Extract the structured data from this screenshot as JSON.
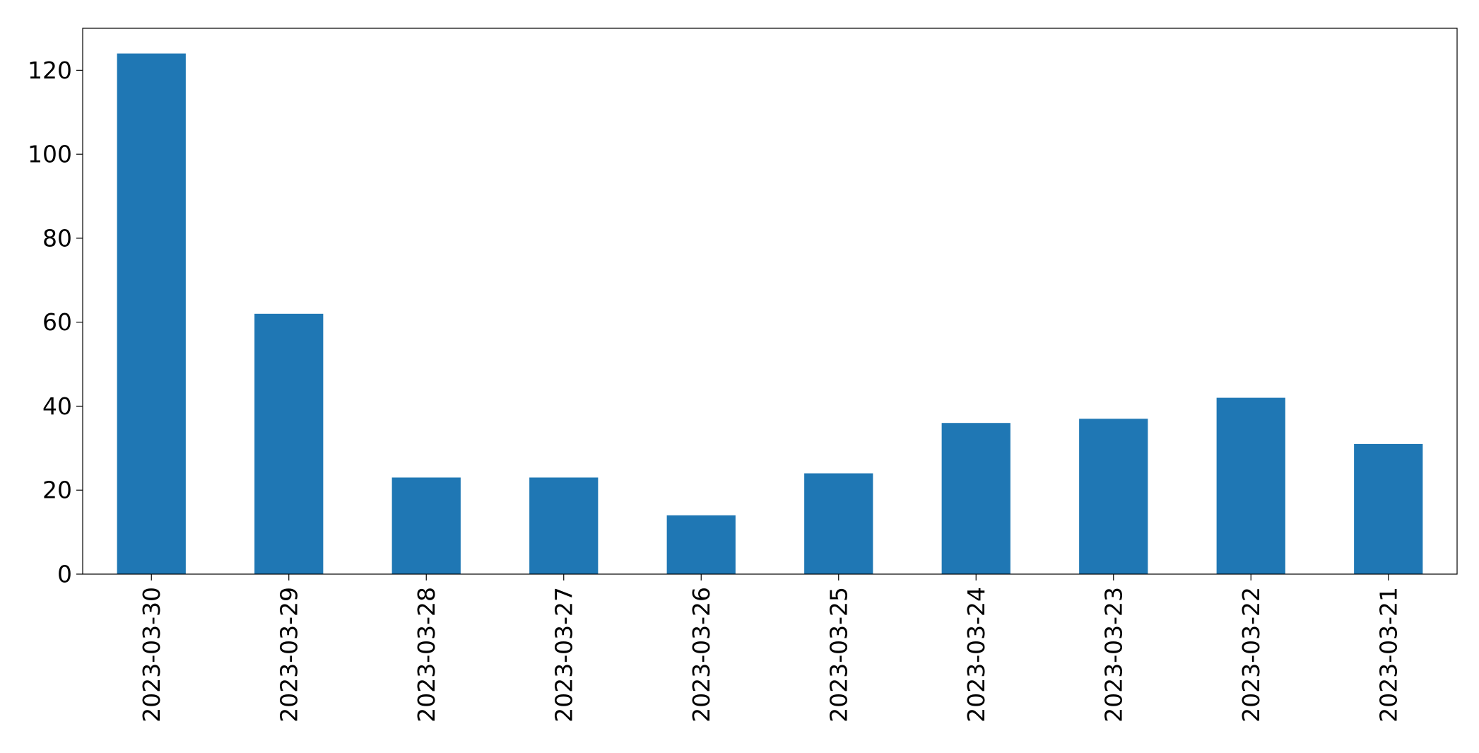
{
  "chart_data": {
    "type": "bar",
    "title": "",
    "xlabel": "",
    "ylabel": "",
    "categories": [
      "2023-03-30",
      "2023-03-29",
      "2023-03-28",
      "2023-03-27",
      "2023-03-26",
      "2023-03-25",
      "2023-03-24",
      "2023-03-23",
      "2023-03-22",
      "2023-03-21"
    ],
    "values": [
      124,
      62,
      23,
      23,
      14,
      24,
      36,
      37,
      42,
      31
    ],
    "ylim": [
      0,
      130
    ],
    "yticks": [
      0,
      20,
      40,
      60,
      80,
      100,
      120
    ],
    "bar_color": "#1f77b4",
    "grid": false,
    "legend": "none"
  }
}
